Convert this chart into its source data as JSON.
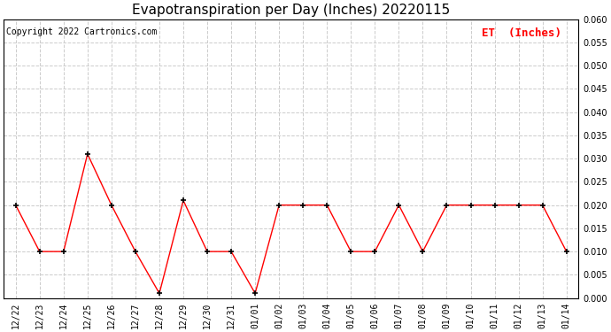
{
  "title": "Evapotranspiration per Day (Inches) 20220115",
  "copyright": "Copyright 2022 Cartronics.com",
  "legend_label": "ET  (Inches)",
  "labels": [
    "12/22",
    "12/23",
    "12/24",
    "12/25",
    "12/26",
    "12/27",
    "12/28",
    "12/29",
    "12/30",
    "12/31",
    "01/01",
    "01/02",
    "01/03",
    "01/04",
    "01/05",
    "01/06",
    "01/07",
    "01/08",
    "01/09",
    "01/10",
    "01/11",
    "01/12",
    "01/13",
    "01/14"
  ],
  "values": [
    0.02,
    0.01,
    0.01,
    0.031,
    0.02,
    0.01,
    0.001,
    0.021,
    0.01,
    0.01,
    0.001,
    0.02,
    0.02,
    0.02,
    0.01,
    0.01,
    0.02,
    0.01,
    0.02,
    0.02,
    0.02,
    0.02,
    0.02,
    0.01
  ],
  "line_color": "red",
  "marker_color": "black",
  "marker": "+",
  "ylim": [
    0.0,
    0.06
  ],
  "yticks": [
    0.0,
    0.005,
    0.01,
    0.015,
    0.02,
    0.025,
    0.03,
    0.035,
    0.04,
    0.045,
    0.05,
    0.055,
    0.06
  ],
  "grid_color": "#cccccc",
  "grid_style": "--",
  "background_color": "#ffffff",
  "title_fontsize": 11,
  "copyright_fontsize": 7,
  "legend_fontsize": 9,
  "tick_fontsize": 7
}
